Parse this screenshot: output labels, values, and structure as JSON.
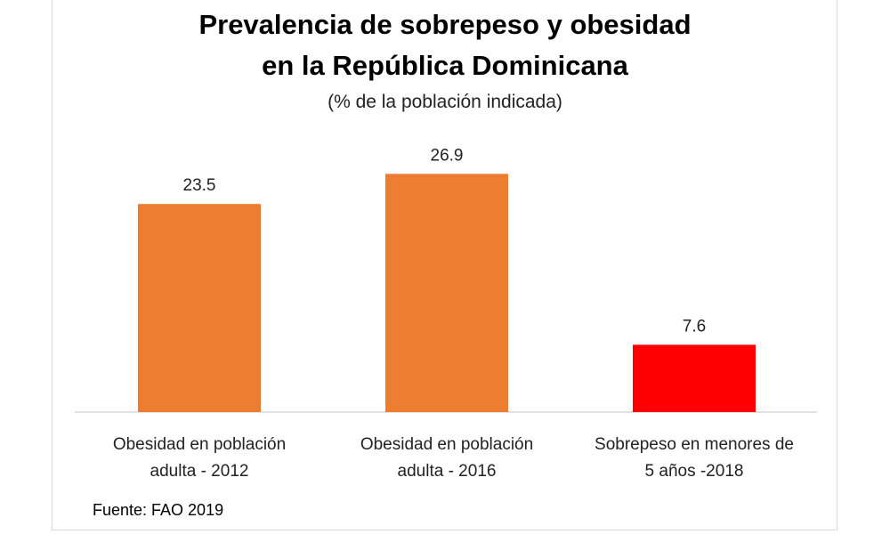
{
  "chart_data": {
    "type": "bar",
    "title_line1": "Prevalencia de sobrepeso y obesidad",
    "title_line2": "en la República Dominicana",
    "subtitle": "(% de la población indicada)",
    "categories": [
      [
        "Obesidad en población",
        "adulta - 2012"
      ],
      [
        "Obesidad en población",
        "adulta - 2016"
      ],
      [
        "Sobrepeso en menores de",
        "5 años -2018"
      ]
    ],
    "values": [
      23.5,
      26.9,
      7.6
    ],
    "data_labels": [
      "23.5",
      "26.9",
      "7.6"
    ],
    "colors": [
      "#ED7D31",
      "#ED7D31",
      "#FF0000"
    ],
    "ylim": [
      0,
      30
    ],
    "grid": false,
    "legend": "none",
    "xlabel": "",
    "ylabel": "",
    "source": "Fuente: FAO 2019"
  }
}
